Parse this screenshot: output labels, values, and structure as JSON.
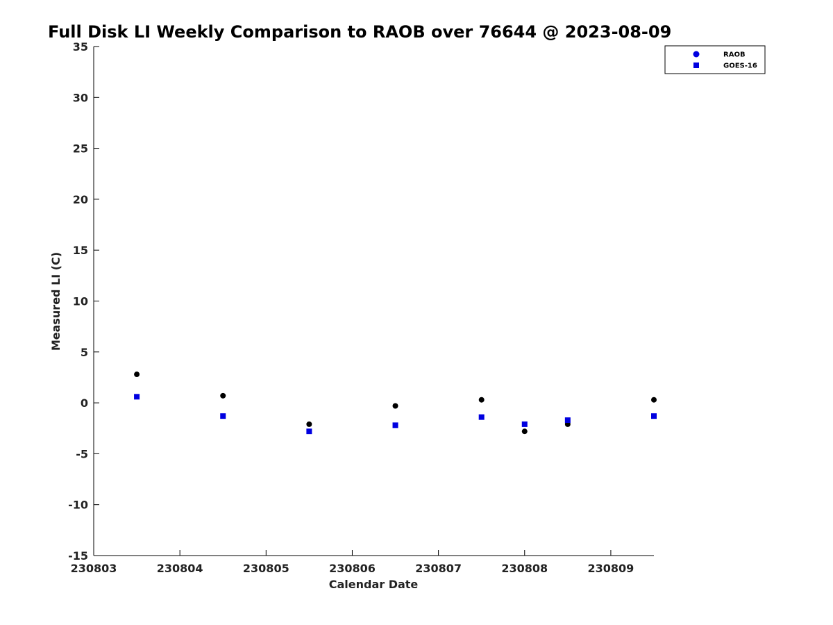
{
  "chart_data": {
    "type": "scatter",
    "title": "Full Disk LI Weekly Comparison to RAOB over 76644 @ 2023-08-09",
    "xlabel": "Calendar Date",
    "ylabel": "Measured LI (C)",
    "xlim": [
      "230803",
      "230809.5"
    ],
    "ylim": [
      -15,
      35
    ],
    "x_ticks": [
      "230803",
      "230804",
      "230805",
      "230806",
      "230807",
      "230808",
      "230809"
    ],
    "y_ticks": [
      -15,
      -10,
      -5,
      0,
      5,
      10,
      15,
      20,
      25,
      30,
      35
    ],
    "grid": false,
    "legend_position": "top-right",
    "series": [
      {
        "name": "RAOB",
        "marker": "circle",
        "color": "#000000",
        "legend_color": "#0000e0",
        "points": [
          {
            "x": 230803.5,
            "y": 2.8
          },
          {
            "x": 230804.5,
            "y": 0.7
          },
          {
            "x": 230805.5,
            "y": -2.1
          },
          {
            "x": 230806.5,
            "y": -0.3
          },
          {
            "x": 230807.5,
            "y": 0.3
          },
          {
            "x": 230808.0,
            "y": -2.8
          },
          {
            "x": 230808.5,
            "y": -2.1
          },
          {
            "x": 230809.5,
            "y": 0.3
          }
        ]
      },
      {
        "name": "GOES-16",
        "marker": "square",
        "color": "#0000e0",
        "legend_color": "#0000e0",
        "points": [
          {
            "x": 230803.5,
            "y": 0.6
          },
          {
            "x": 230804.5,
            "y": -1.3
          },
          {
            "x": 230805.5,
            "y": -2.8
          },
          {
            "x": 230806.5,
            "y": -2.2
          },
          {
            "x": 230807.5,
            "y": -1.4
          },
          {
            "x": 230808.0,
            "y": -2.1
          },
          {
            "x": 230808.5,
            "y": -1.7
          },
          {
            "x": 230809.5,
            "y": -1.3
          }
        ]
      }
    ]
  }
}
